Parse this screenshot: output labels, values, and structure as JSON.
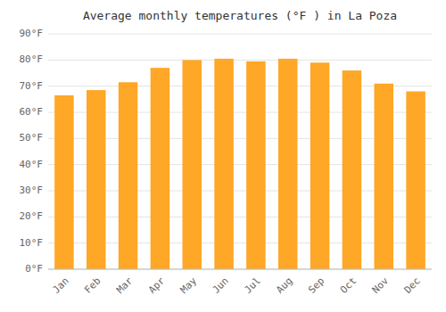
{
  "chart_data": {
    "type": "bar",
    "title": "Average monthly temperatures (°F ) in La Poza",
    "categories": [
      "Jan",
      "Feb",
      "Mar",
      "Apr",
      "May",
      "Jun",
      "Jul",
      "Aug",
      "Sep",
      "Oct",
      "Nov",
      "Dec"
    ],
    "values": [
      66.5,
      68.5,
      71.5,
      77,
      80,
      80.5,
      79.5,
      80.5,
      79,
      76,
      71,
      68
    ],
    "color": "#FFA726",
    "ylim": [
      0,
      90
    ],
    "yticks": [
      {
        "value": 0,
        "label": "0°F"
      },
      {
        "value": 10,
        "label": "10°F"
      },
      {
        "value": 20,
        "label": "20°F"
      },
      {
        "value": 30,
        "label": "30°F"
      },
      {
        "value": 40,
        "label": "40°F"
      },
      {
        "value": 50,
        "label": "50°F"
      },
      {
        "value": 60,
        "label": "60°F"
      },
      {
        "value": 70,
        "label": "70°F"
      },
      {
        "value": 80,
        "label": "80°F"
      },
      {
        "value": 90,
        "label": "90°F"
      }
    ],
    "grid": true
  }
}
